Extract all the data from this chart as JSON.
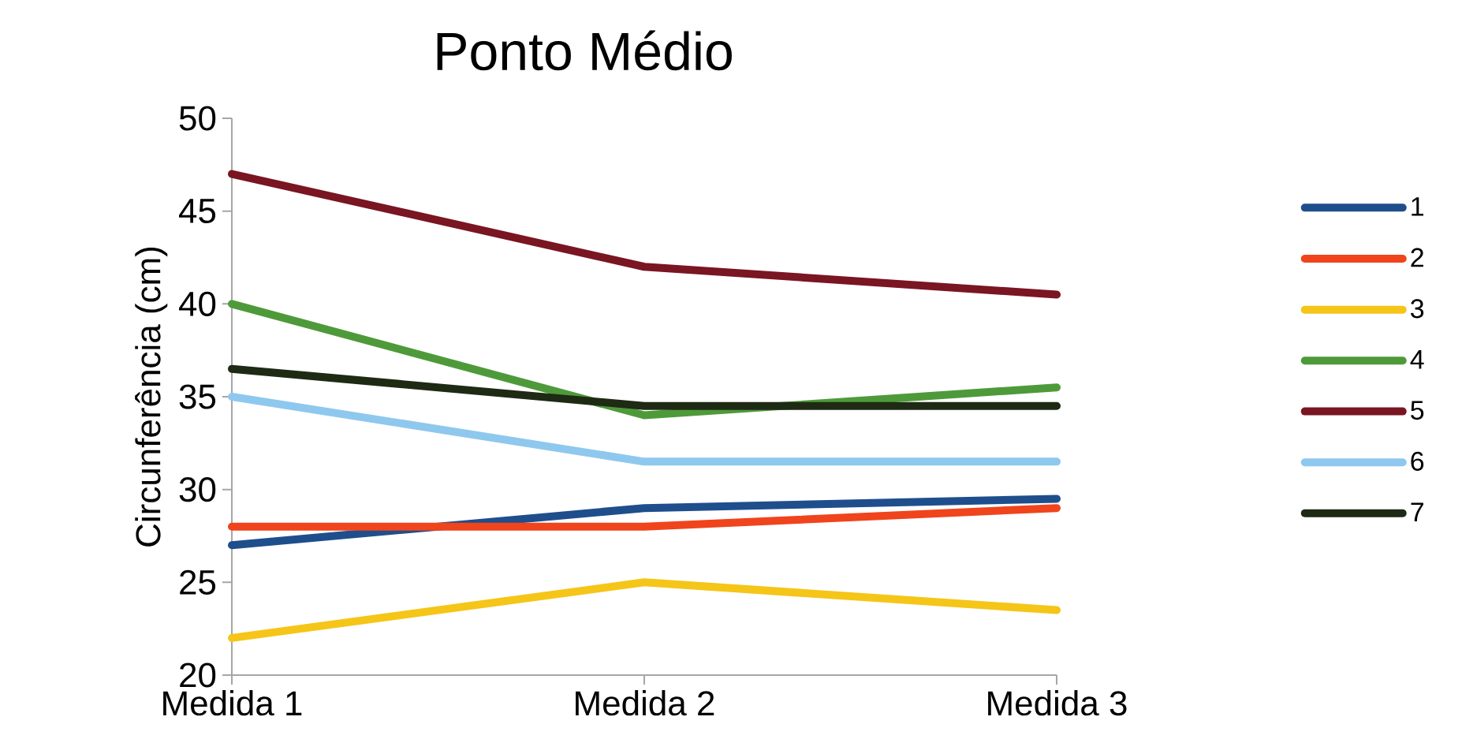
{
  "chart_data": {
    "type": "line",
    "title": "Ponto Médio",
    "ylabel": "Circunferência (cm)",
    "categories": [
      "Medida 1",
      "Medida 2",
      "Medida 3"
    ],
    "series": [
      {
        "name": "1",
        "color": "#1f4e8c",
        "values": [
          27,
          29,
          29.5
        ]
      },
      {
        "name": "2",
        "color": "#f0441c",
        "values": [
          28,
          28,
          29
        ]
      },
      {
        "name": "3",
        "color": "#f5c518",
        "values": [
          22,
          25,
          23.5
        ]
      },
      {
        "name": "4",
        "color": "#4e9a3a",
        "values": [
          40,
          34,
          35.5
        ]
      },
      {
        "name": "5",
        "color": "#7a1522",
        "values": [
          47,
          42,
          40.5
        ]
      },
      {
        "name": "6",
        "color": "#8fc8ee",
        "values": [
          35,
          31.5,
          31.5
        ]
      },
      {
        "name": "7",
        "color": "#1e2a14",
        "values": [
          36.5,
          34.5,
          34.5
        ]
      }
    ],
    "ylim": [
      20,
      50
    ],
    "yticks": [
      20,
      25,
      30,
      35,
      40,
      45,
      50
    ],
    "grid": false,
    "legend": "right",
    "marker": "none",
    "line_style": "solid"
  }
}
